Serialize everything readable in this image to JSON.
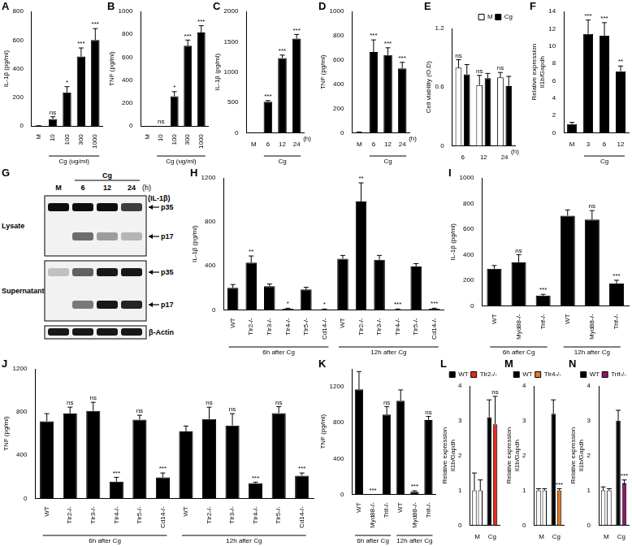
{
  "chart_data": [
    {
      "panel": "A",
      "type": "bar",
      "ylabel": "IL-1β (pg/ml)",
      "categories": [
        "M",
        "10",
        "100",
        "300",
        "1000"
      ],
      "values": [
        2,
        50,
        235,
        485,
        600
      ],
      "errors": [
        1,
        15,
        40,
        60,
        80
      ],
      "annotations": [
        null,
        "ns",
        "*",
        "***",
        "***"
      ],
      "color": "#000000",
      "ylim": [
        0,
        800
      ],
      "yticks": [
        0,
        200,
        400,
        600,
        800
      ],
      "grid": false,
      "groups": [
        {
          "label": "Cg (ug/ml)",
          "from": 1,
          "to": 4
        }
      ]
    },
    {
      "panel": "B",
      "type": "bar",
      "ylabel": "TNF (pg/ml)",
      "categories": [
        "M",
        "10",
        "100",
        "300",
        "1000"
      ],
      "values": [
        0,
        0,
        260,
        700,
        815
      ],
      "errors": [
        0,
        0,
        40,
        50,
        60
      ],
      "annotations": [
        null,
        "ns",
        "*",
        "***",
        "***"
      ],
      "color": "#000000",
      "ylim": [
        0,
        1000
      ],
      "yticks": [
        0,
        200,
        400,
        600,
        800,
        1000
      ],
      "grid": false,
      "groups": [
        {
          "label": "Cg (ug/ml)",
          "from": 1,
          "to": 4
        }
      ]
    },
    {
      "panel": "C",
      "type": "bar",
      "ylabel": "IL-1β (pg/ml)",
      "categories": [
        "M",
        "6",
        "12",
        "24"
      ],
      "values": [
        0,
        510,
        1230,
        1550
      ],
      "errors": [
        0,
        20,
        50,
        70
      ],
      "annotations": [
        null,
        "***",
        "***",
        "***"
      ],
      "color": "#000000",
      "ylim": [
        0,
        2000
      ],
      "yticks": [
        0,
        500,
        1000,
        1500,
        2000
      ],
      "grid": false,
      "groups": [
        {
          "label": "Cg",
          "from": 1,
          "to": 3
        }
      ],
      "unit_label": "(h)"
    },
    {
      "panel": "D",
      "type": "bar",
      "ylabel": "TNF (pg/ml)",
      "categories": [
        "M",
        "6",
        "12",
        "24"
      ],
      "values": [
        5,
        665,
        640,
        530
      ],
      "errors": [
        2,
        100,
        60,
        50
      ],
      "annotations": [
        null,
        "***",
        "***",
        "***"
      ],
      "color": "#000000",
      "ylim": [
        0,
        1000
      ],
      "yticks": [
        0,
        200,
        400,
        600,
        800,
        1000
      ],
      "grid": false,
      "groups": [
        {
          "label": "Cg",
          "from": 1,
          "to": 3
        }
      ],
      "unit_label": "(h)"
    },
    {
      "panel": "E",
      "type": "bar",
      "ylabel": "Cell viability (O.D)",
      "categories": [
        "6",
        "12",
        "24"
      ],
      "series": [
        {
          "name": "M",
          "color": "#ffffff",
          "values": [
            0.8,
            0.62,
            0.7
          ],
          "errors": [
            0.08,
            0.1,
            0.05
          ],
          "annotations": [
            "ns",
            "ns",
            "ns"
          ]
        },
        {
          "name": "Cg",
          "color": "#000000",
          "values": [
            0.73,
            0.69,
            0.61
          ],
          "errors": [
            0.1,
            0.05,
            0.1
          ],
          "annotations": [
            null,
            null,
            null
          ]
        }
      ],
      "ylim": [
        0,
        1.2
      ],
      "yticks": [
        0,
        0.6,
        1.2
      ],
      "grid": false,
      "legend": "top-right",
      "unit_label": "(h)"
    },
    {
      "panel": "F",
      "type": "bar",
      "ylabel": [
        "Relative expression",
        "Il1b/Gapdh"
      ],
      "categories": [
        "M",
        "3",
        "6",
        "12"
      ],
      "values": [
        1,
        11.4,
        11.2,
        7.1
      ],
      "errors": [
        0.2,
        1.6,
        1.5,
        0.6
      ],
      "annotations": [
        null,
        "***",
        "***",
        "**"
      ],
      "color": "#000000",
      "ylim": [
        0,
        14
      ],
      "yticks": [
        0,
        2,
        4,
        6,
        8,
        10,
        12,
        14
      ],
      "grid": false,
      "groups": [
        {
          "label": "Cg",
          "from": 1,
          "to": 3
        }
      ]
    },
    {
      "panel": "H",
      "type": "bar",
      "ylabel": "IL-1β (pg/ml)",
      "categories": [
        "WT",
        "Tlr2-/-",
        "Tlr3-/-",
        "Tlr4-/-",
        "Tlr5-/-",
        "Cd14-/-",
        "WT",
        "Tlr2-/-",
        "Tlr3-/-",
        "Tlr4-/-",
        "Tlr5-/-",
        "Cd14-/-"
      ],
      "values": [
        200,
        430,
        215,
        10,
        185,
        5,
        465,
        985,
        455,
        5,
        395,
        10
      ],
      "errors": [
        30,
        60,
        20,
        5,
        20,
        3,
        30,
        170,
        40,
        3,
        25,
        5
      ],
      "annotations": [
        null,
        "**",
        null,
        "*",
        null,
        "*",
        null,
        "**",
        null,
        "***",
        null,
        "***"
      ],
      "color": "#000000",
      "ylim": [
        0,
        1200
      ],
      "yticks": [
        0,
        400,
        800,
        1200
      ],
      "grid": false,
      "groups": [
        {
          "label": "6h after Cg",
          "from": 0,
          "to": 5
        },
        {
          "label": "12h after Cg",
          "from": 6,
          "to": 11
        }
      ]
    },
    {
      "panel": "I",
      "type": "bar",
      "ylabel": "IL-1β (pg/ml)",
      "categories": [
        "WT",
        "Myd88-/-",
        "Trif-/-",
        "WT",
        "Myd88-/-",
        "Trif-/-"
      ],
      "values": [
        290,
        340,
        80,
        705,
        675,
        175
      ],
      "errors": [
        25,
        60,
        10,
        45,
        70,
        25
      ],
      "annotations": [
        null,
        "ns",
        "***",
        null,
        "ns",
        "***"
      ],
      "color": "#000000",
      "ylim": [
        0,
        1000
      ],
      "yticks": [
        0,
        200,
        400,
        600,
        800,
        1000
      ],
      "grid": false,
      "groups": [
        {
          "label": "6h after Cg",
          "from": 0,
          "to": 2
        },
        {
          "label": "12h after Cg",
          "from": 3,
          "to": 5
        }
      ]
    },
    {
      "panel": "J",
      "type": "bar",
      "ylabel": "TNF (pg/ml)",
      "categories": [
        "WT",
        "Tlr2-/-",
        "Tlr3-/-",
        "Tlr4-/-",
        "Tlr5-/-",
        "Cd14-/-",
        "WT",
        "Tlr2-/-",
        "Tlr3-/-",
        "Tlr4-/-",
        "Tlr5-/-",
        "Cd14-/-"
      ],
      "values": [
        715,
        785,
        810,
        155,
        730,
        195,
        620,
        735,
        675,
        140,
        790,
        210
      ],
      "errors": [
        70,
        60,
        80,
        40,
        40,
        40,
        50,
        110,
        110,
        10,
        60,
        25
      ],
      "annotations": [
        null,
        "ns",
        "ns",
        "***",
        "ns",
        "***",
        null,
        "ns",
        "ns",
        "***",
        "ns",
        "***"
      ],
      "color": "#000000",
      "ylim": [
        0,
        1200
      ],
      "yticks": [
        0,
        400,
        800,
        1200
      ],
      "grid": false,
      "groups": [
        {
          "label": "6h after Cg",
          "from": 0,
          "to": 5
        },
        {
          "label": "12h after Cg",
          "from": 6,
          "to": 11
        }
      ]
    },
    {
      "panel": "K",
      "type": "bar",
      "ylabel": "TNF (pg/ml)",
      "categories": [
        "WT",
        "Myd88-/-",
        "Trif-/-",
        "WT",
        "Myd88-/-",
        "Trif-/-"
      ],
      "values": [
        1170,
        0,
        890,
        1045,
        30,
        830
      ],
      "errors": [
        200,
        0,
        90,
        120,
        10,
        40
      ],
      "annotations": [
        null,
        "***",
        "ns",
        null,
        "***",
        "ns"
      ],
      "color": "#000000",
      "ylim": [
        0,
        1400
      ],
      "yticks": [
        0,
        400,
        800,
        1200
      ],
      "grid": false,
      "groups": [
        {
          "label": "6h after Cg",
          "from": 0,
          "to": 2
        },
        {
          "label": "12h after Cg",
          "from": 3,
          "to": 5
        }
      ]
    },
    {
      "panel": "L",
      "type": "bar",
      "ylabel": [
        "Relative expression",
        "Il1b/Gapdh"
      ],
      "categories": [
        "M",
        "Cg"
      ],
      "series": [
        {
          "name": "WT",
          "color": "#000000",
          "colors": [
            "#ffffff",
            "#000000"
          ],
          "values": [
            1.0,
            3.1
          ],
          "errors": [
            0.5,
            0.5
          ],
          "annotations": [
            null,
            null
          ]
        },
        {
          "name": "Tlr2-/-",
          "color": "#e8291c",
          "colors": [
            "#ffffff",
            "#e8291c"
          ],
          "values": [
            1.0,
            2.9
          ],
          "errors": [
            0.3,
            0.8
          ],
          "annotations": [
            null,
            "ns"
          ]
        }
      ],
      "ylim": [
        0,
        4
      ],
      "yticks": [
        0,
        1,
        2,
        3,
        4
      ],
      "grid": false,
      "legend": "top-right"
    },
    {
      "panel": "M",
      "type": "bar",
      "ylabel": [
        "Relative expression",
        "Il1b/Gapdh"
      ],
      "categories": [
        "M",
        "Cg"
      ],
      "series": [
        {
          "name": "WT",
          "color": "#000000",
          "colors": [
            "#ffffff",
            "#000000"
          ],
          "values": [
            1.0,
            3.2
          ],
          "errors": [
            0.05,
            0.4
          ],
          "annotations": [
            null,
            null
          ]
        },
        {
          "name": "Tlr4-/-",
          "color": "#e07b20",
          "colors": [
            "#ffffff",
            "#e07b20"
          ],
          "values": [
            1.0,
            1.0
          ],
          "errors": [
            0.05,
            0.05
          ],
          "annotations": [
            null,
            "***"
          ]
        }
      ],
      "ylim": [
        0,
        4
      ],
      "yticks": [
        0,
        1,
        2,
        3,
        4
      ],
      "grid": false,
      "legend": "top-right"
    },
    {
      "panel": "N",
      "type": "bar",
      "ylabel": [
        "Relative expression",
        "Il1b/Gapdh"
      ],
      "categories": [
        "M",
        "Cg"
      ],
      "series": [
        {
          "name": "WT",
          "color": "#000000",
          "colors": [
            "#ffffff",
            "#000000"
          ],
          "values": [
            1.0,
            3.0
          ],
          "errors": [
            0.1,
            0.3
          ],
          "annotations": [
            null,
            null
          ]
        },
        {
          "name": "Trif-/-",
          "color": "#8b1a6b",
          "colors": [
            "#ffffff",
            "#8b1a6b"
          ],
          "values": [
            1.0,
            1.2
          ],
          "errors": [
            0.05,
            0.1
          ],
          "annotations": [
            null,
            "***"
          ]
        }
      ],
      "ylim": [
        0,
        4
      ],
      "yticks": [
        0,
        1,
        2,
        3,
        4
      ],
      "grid": false,
      "legend": "top-right"
    }
  ],
  "blot": {
    "panel": "G",
    "treatment": "Cg",
    "lanes": [
      "M",
      "6",
      "12",
      "24"
    ],
    "unit_label": "(h)",
    "target": "(IL-1β)",
    "blots": [
      {
        "label": "Lysate",
        "bands": [
          "p35",
          "p17"
        ]
      },
      {
        "label": "Supernatant",
        "bands": [
          "p35",
          "p17"
        ]
      },
      {
        "label": "β-Actin",
        "bands": []
      }
    ]
  }
}
